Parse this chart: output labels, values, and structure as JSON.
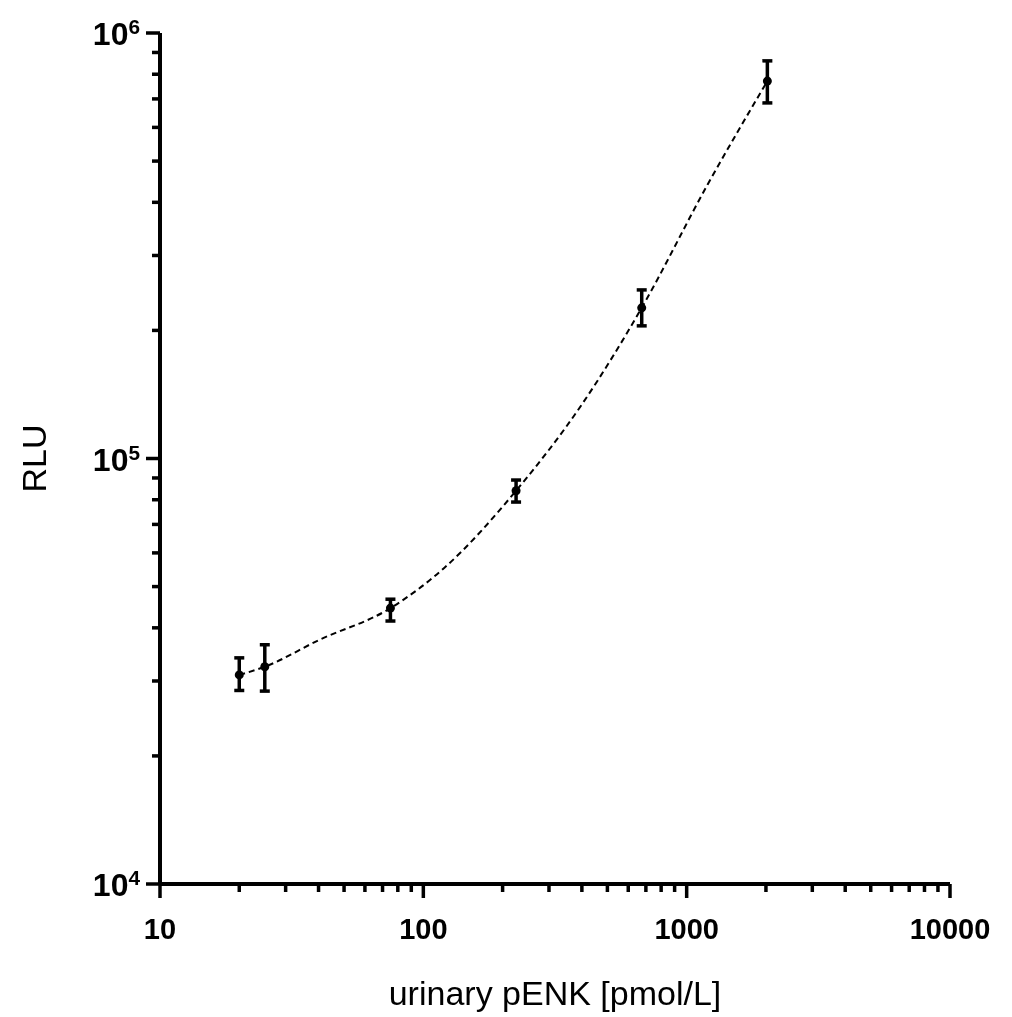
{
  "chart_data": {
    "type": "scatter",
    "xlabel": "urinary pENK [pmol/L]",
    "ylabel": "RLU",
    "log": "xy",
    "grid": false,
    "xlim": [
      10,
      10000
    ],
    "ylim": [
      10000,
      1000000
    ],
    "xticks": [
      10,
      {
        "value": 20,
        "label": null
      },
      {
        "value": 30,
        "label": null
      },
      {
        "value": 40,
        "label": null
      },
      {
        "value": 50,
        "label": null
      },
      {
        "value": 60,
        "label": null
      },
      {
        "value": 70,
        "label": null
      },
      {
        "value": 80,
        "label": null
      },
      {
        "value": 90,
        "label": null
      },
      100,
      {
        "value": 200,
        "label": null
      },
      {
        "value": 300,
        "label": null
      },
      {
        "value": 400,
        "label": null
      },
      {
        "value": 500,
        "label": null
      },
      {
        "value": 600,
        "label": null
      },
      {
        "value": 700,
        "label": null
      },
      {
        "value": 800,
        "label": null
      },
      {
        "value": 900,
        "label": null
      },
      1000,
      {
        "value": 2000,
        "label": null
      },
      {
        "value": 3000,
        "label": null
      },
      {
        "value": 4000,
        "label": null
      },
      {
        "value": 5000,
        "label": null
      },
      {
        "value": 6000,
        "label": null
      },
      {
        "value": 7000,
        "label": null
      },
      {
        "value": 8000,
        "label": null
      },
      {
        "value": 9000,
        "label": null
      },
      10000
    ],
    "yticks": [
      {
        "value": 10000,
        "label": "10$^{4}$"
      },
      {
        "value": 20000,
        "label": null
      },
      {
        "value": 30000,
        "label": null
      },
      {
        "value": 40000,
        "label": null
      },
      {
        "value": 50000,
        "label": null
      },
      {
        "value": 60000,
        "label": null
      },
      {
        "value": 70000,
        "label": null
      },
      {
        "value": 80000,
        "label": null
      },
      {
        "value": 90000,
        "label": null
      },
      {
        "value": 100000,
        "label": "10$^{5}$"
      },
      {
        "value": 200000,
        "label": null
      },
      {
        "value": 300000,
        "label": null
      },
      {
        "value": 400000,
        "label": null
      },
      {
        "value": 500000,
        "label": null
      },
      {
        "value": 600000,
        "label": null
      },
      {
        "value": 700000,
        "label": null
      },
      {
        "value": 800000,
        "label": null
      },
      {
        "value": 900000,
        "label": null
      },
      {
        "value": 1000000,
        "label": "10$^{6}$"
      }
    ],
    "series": [
      {
        "color": "#000000",
        "marker": "circle",
        "x": [
          20,
          25,
          75,
          225,
          675,
          2025
        ],
        "values": [
          31000,
          32400,
          44500,
          84000,
          226000,
          771000
        ],
        "errors": [
          [
            28500,
            34000
          ],
          [
            28400,
            36500
          ],
          [
            41500,
            46700
          ],
          [
            79000,
            89000
          ],
          [
            205000,
            249000
          ],
          [
            685000,
            860000
          ]
        ]
      },
      {
        "type": "line",
        "color": "#000000",
        "marker": "none",
        "line_style": "dashed",
        "x": [
          20,
          25,
          40,
          75,
          120,
          225,
          400,
          675,
          1200,
          2025
        ],
        "values": [
          31000,
          32400,
          37400,
          44500,
          55300,
          84000,
          134000,
          226000,
          440000,
          771000
        ]
      }
    ]
  }
}
